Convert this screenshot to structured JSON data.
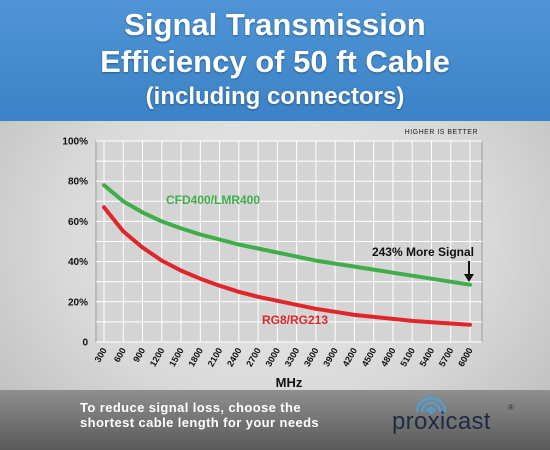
{
  "header": {
    "title_line1": "Signal Transmission",
    "title_line2": "Efficiency of 50 ft Cable",
    "title_line3": "(including connectors)"
  },
  "note": "HIGHER IS BETTER",
  "callout": "243% More Signal",
  "footer": {
    "tip_line1": "To reduce signal loss, choose the",
    "tip_line2": "shortest cable length for your needs",
    "brand": "proxicast",
    "registered": "®"
  },
  "colors": {
    "banner": "#3b82c6",
    "green": "#3fae49",
    "red": "#e0262b",
    "grid": "#ffffff"
  },
  "chart_data": {
    "type": "line",
    "xlabel": "MHz",
    "ylabel": "",
    "ylim": [
      0,
      100
    ],
    "yticks": [
      "0",
      "20%",
      "40%",
      "60%",
      "80%",
      "100%"
    ],
    "x": [
      300,
      600,
      900,
      1200,
      1500,
      1800,
      2100,
      2400,
      2700,
      3000,
      3300,
      3600,
      3900,
      4200,
      4500,
      4800,
      5100,
      5400,
      5700,
      6000
    ],
    "xticks": [
      "300",
      "600",
      "900",
      "1200",
      "1500",
      "1800",
      "2100",
      "2400",
      "2700",
      "3000",
      "3300",
      "3600",
      "3900",
      "4200",
      "4500",
      "4800",
      "5100",
      "5400",
      "5700",
      "6000"
    ],
    "series": [
      {
        "name": "CFD400/LMR400",
        "color": "#3fae49",
        "values": [
          78,
          70,
          64.5,
          60,
          56.5,
          53.5,
          51,
          48.5,
          46.5,
          44.5,
          42.5,
          40.5,
          39,
          37.5,
          36,
          34.5,
          33,
          31.5,
          30,
          28.5
        ]
      },
      {
        "name": "RG8/RG213",
        "color": "#e0262b",
        "values": [
          67,
          55,
          47,
          40.5,
          35.5,
          31.5,
          28,
          25,
          22.5,
          20.5,
          18.5,
          16.5,
          15,
          13.5,
          12.5,
          11.5,
          10.5,
          9.8,
          9.2,
          8.6
        ]
      }
    ],
    "grid": true
  }
}
